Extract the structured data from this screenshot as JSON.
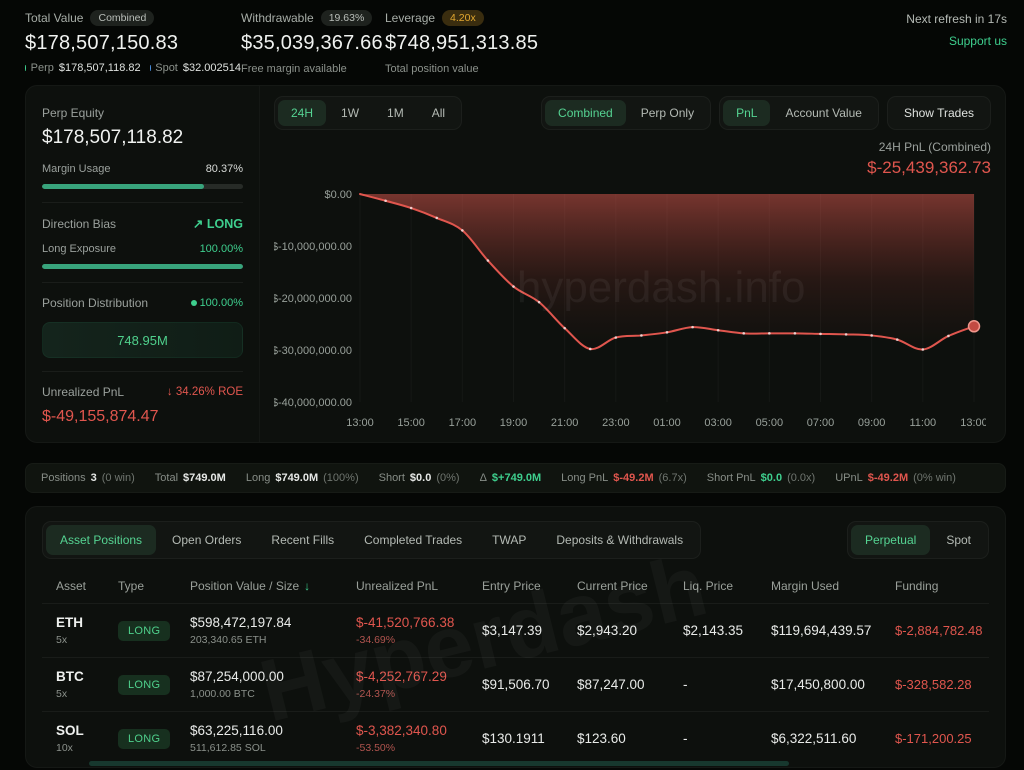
{
  "header": {
    "total": {
      "label": "Total Value",
      "badge": "Combined",
      "value": "$178,507,150.83",
      "perp_label": "Perp",
      "perp_value": "$178,507,118.82",
      "spot_label": "Spot",
      "spot_value": "$32.002514"
    },
    "withdrawable": {
      "label": "Withdrawable",
      "badge": "19.63%",
      "value": "$35,039,367.66",
      "sub": "Free margin available"
    },
    "leverage": {
      "label": "Leverage",
      "badge": "4.20x",
      "value": "$748,951,313.85",
      "sub": "Total position value"
    },
    "refresh": "Next refresh in 17s",
    "support": "Support us"
  },
  "panel": {
    "perp_equity_label": "Perp Equity",
    "perp_equity_value": "$178,507,118.82",
    "margin_usage_label": "Margin Usage",
    "margin_usage_value": "80.37%",
    "margin_usage_pct": 80.37,
    "direction_bias_label": "Direction Bias",
    "direction_bias_value": "LONG",
    "long_exposure_label": "Long Exposure",
    "long_exposure_value": "100.00%",
    "long_exposure_pct": 100,
    "position_distribution_label": "Position Distribution",
    "position_distribution_pct": "100.00%",
    "position_distribution_value": "748.95M",
    "unrealized_pnl_label": "Unrealized PnL",
    "roe_value": "34.26% ROE",
    "unrealized_pnl_value": "$-49,155,874.47"
  },
  "chart_header": {
    "ranges": [
      "24H",
      "1W",
      "1M",
      "All"
    ],
    "active_range": "24H",
    "modes": [
      "Combined",
      "Perp Only"
    ],
    "active_mode": "Combined",
    "views": [
      "PnL",
      "Account Value"
    ],
    "active_view": "PnL",
    "show_trades": "Show Trades",
    "pnl_label": "24H PnL (Combined)",
    "pnl_value": "$-25,439,362.73"
  },
  "chart_data": {
    "type": "area",
    "title": "24H PnL (Combined)",
    "x_hours": [
      "13:00",
      "14:00",
      "15:00",
      "16:00",
      "17:00",
      "18:00",
      "19:00",
      "20:00",
      "21:00",
      "22:00",
      "23:00",
      "00:00",
      "01:00",
      "02:00",
      "03:00",
      "04:00",
      "05:00",
      "06:00",
      "07:00",
      "08:00",
      "09:00",
      "10:00",
      "11:00",
      "12:00",
      "13:00"
    ],
    "values_usd_m": [
      0,
      -1.3,
      -2.7,
      -4.6,
      -7.0,
      -12.8,
      -17.8,
      -20.8,
      -25.8,
      -29.8,
      -27.6,
      -27.2,
      -26.6,
      -25.6,
      -26.2,
      -26.8,
      -26.8,
      -26.8,
      -26.9,
      -27.0,
      -27.2,
      -28.0,
      -29.9,
      -27.3,
      -25.44
    ],
    "x_tick_labels": [
      "13:00",
      "15:00",
      "17:00",
      "19:00",
      "21:00",
      "23:00",
      "01:00",
      "03:00",
      "05:00",
      "07:00",
      "09:00",
      "11:00",
      "13:00"
    ],
    "y_tick_labels": [
      "$0.00",
      "$-10,000,000.00",
      "$-20,000,000.00",
      "$-30,000,000.00",
      "$-40,000,000.00"
    ],
    "ylim_usd_m": [
      0,
      -40
    ],
    "line_color": "#e0564e",
    "grid": "faint-vertical",
    "legend": "none",
    "watermark": "hyperdash.info"
  },
  "positions_bar": {
    "items": [
      {
        "label": "Positions",
        "value": "3",
        "extra": "(0 win)",
        "color": "white"
      },
      {
        "label": "Total",
        "value": "$749.0M",
        "extra": "",
        "color": "white"
      },
      {
        "label": "Long",
        "value": "$749.0M",
        "extra": "(100%)",
        "color": "white"
      },
      {
        "label": "Short",
        "value": "$0.0",
        "extra": "(0%)",
        "color": "white"
      },
      {
        "label": "Δ",
        "value": "$+749.0M",
        "extra": "",
        "color": "green"
      },
      {
        "label": "Long PnL",
        "value": "$-49.2M",
        "extra": "(6.7x)",
        "color": "red"
      },
      {
        "label": "Short PnL",
        "value": "$0.0",
        "extra": "(0.0x)",
        "color": "green"
      },
      {
        "label": "UPnL",
        "value": "$-49.2M",
        "extra": "(0% win)",
        "color": "red"
      }
    ]
  },
  "tabs": {
    "items": [
      "Asset Positions",
      "Open Orders",
      "Recent Fills",
      "Completed Trades",
      "TWAP",
      "Deposits & Withdrawals"
    ],
    "active": "Asset Positions",
    "market_toggle": [
      "Perpetual",
      "Spot"
    ],
    "active_market": "Perpetual"
  },
  "table": {
    "headers": [
      "Asset",
      "Type",
      "Position Value / Size",
      "Unrealized PnL",
      "Entry Price",
      "Current Price",
      "Liq. Price",
      "Margin Used",
      "Funding"
    ],
    "sorted_header_index": 2,
    "rows": [
      {
        "asset": "ETH",
        "leverage": "5x",
        "type": "LONG",
        "position_value": "$598,472,197.84",
        "size": "203,340.65 ETH",
        "unrealized_pnl": "$-41,520,766.38",
        "pnl_pct": "-34.69%",
        "entry_price": "$3,147.39",
        "current_price": "$2,943.20",
        "liq_price": "$2,143.35",
        "margin_used": "$119,694,439.57",
        "funding": "$-2,884,782.48"
      },
      {
        "asset": "BTC",
        "leverage": "5x",
        "type": "LONG",
        "position_value": "$87,254,000.00",
        "size": "1,000.00 BTC",
        "unrealized_pnl": "$-4,252,767.29",
        "pnl_pct": "-24.37%",
        "entry_price": "$91,506.70",
        "current_price": "$87,247.00",
        "liq_price": "-",
        "margin_used": "$17,450,800.00",
        "funding": "$-328,582.28"
      },
      {
        "asset": "SOL",
        "leverage": "10x",
        "type": "LONG",
        "position_value": "$63,225,116.00",
        "size": "511,612.85 SOL",
        "unrealized_pnl": "$-3,382,340.80",
        "pnl_pct": "-53.50%",
        "entry_price": "$130.1911",
        "current_price": "$123.60",
        "liq_price": "-",
        "margin_used": "$6,322,511.60",
        "funding": "$-171,200.25"
      }
    ]
  },
  "icons": {
    "trend_up": "↗",
    "arrow_down": "↓",
    "sort_down": "↓"
  },
  "watermarks": {
    "chart": "hyperdash.info",
    "table": "Hyperdash"
  },
  "colors": {
    "accent_green": "#3ecf8e",
    "negative_red": "#e0564e",
    "gold": "#e3a82f",
    "spot_blue": "#4a8fe0",
    "background": "#050705",
    "card": "#0d100d"
  }
}
